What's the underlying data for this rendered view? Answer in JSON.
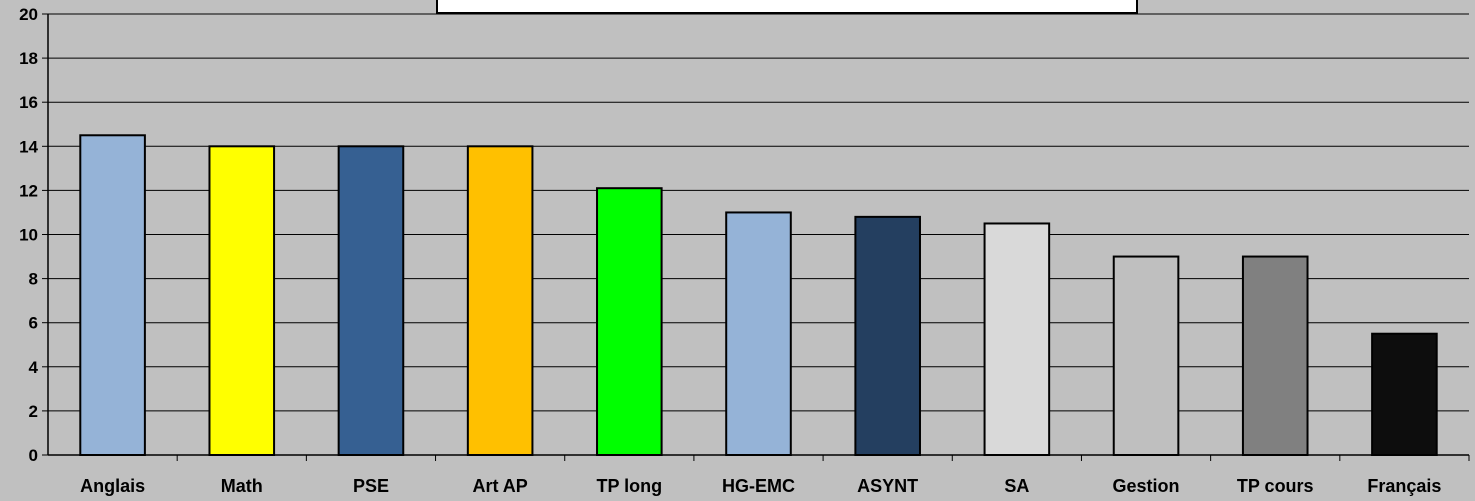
{
  "chart_data": {
    "type": "bar",
    "categories": [
      "Anglais",
      "Math",
      "PSE",
      "Art AP",
      "TP long",
      "HG-EMC",
      "ASYNT",
      "SA",
      "Gestion",
      "TP cours",
      "Français"
    ],
    "values": [
      14.5,
      14,
      14,
      14,
      12.1,
      11,
      10.8,
      10.5,
      9,
      9,
      5.5
    ],
    "colors": [
      "#95b3d7",
      "#ffff00",
      "#366092",
      "#ffc000",
      "#00ff00",
      "#95b3d7",
      "#243f60",
      "#d9d9d9",
      "#bfbfbf",
      "#808080",
      "#0d0d0d"
    ],
    "ylim": [
      0,
      20
    ],
    "yticks": [
      "0",
      "2",
      "4",
      "6",
      "8",
      "10",
      "12",
      "14",
      "16",
      "18",
      "20"
    ],
    "grid": true,
    "title": "",
    "xlabel": "",
    "ylabel": ""
  },
  "style": {
    "background": "#c0c0c0",
    "plot_background": "#c0c0c0",
    "gridline_color": "#000000",
    "bar_border": "#000000"
  }
}
